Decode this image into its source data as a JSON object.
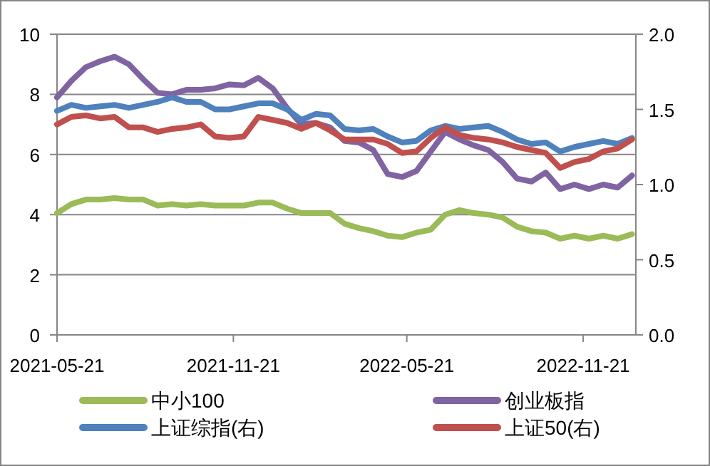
{
  "chart_data": {
    "type": "line",
    "x": [
      "2021-05-21",
      "2021-06-05",
      "2021-06-20",
      "2021-07-05",
      "2021-07-20",
      "2021-08-04",
      "2021-08-19",
      "2021-09-03",
      "2021-09-18",
      "2021-10-03",
      "2021-10-18",
      "2021-11-02",
      "2021-11-17",
      "2021-12-02",
      "2021-12-17",
      "2022-01-01",
      "2022-01-16",
      "2022-01-31",
      "2022-02-15",
      "2022-03-02",
      "2022-03-17",
      "2022-04-01",
      "2022-04-16",
      "2022-05-01",
      "2022-05-16",
      "2022-05-31",
      "2022-06-15",
      "2022-06-30",
      "2022-07-15",
      "2022-07-30",
      "2022-08-14",
      "2022-08-29",
      "2022-09-13",
      "2022-09-28",
      "2022-10-13",
      "2022-10-28",
      "2022-11-12",
      "2022-11-27",
      "2022-12-12",
      "2022-12-27",
      "2023-01-11"
    ],
    "series": [
      {
        "name": "中小100",
        "color": "#9bbb59",
        "values": [
          4.05,
          4.35,
          4.5,
          4.5,
          4.55,
          4.5,
          4.5,
          4.3,
          4.35,
          4.3,
          4.35,
          4.3,
          4.3,
          4.3,
          4.4,
          4.4,
          4.2,
          4.05,
          4.05,
          4.05,
          3.7,
          3.55,
          3.45,
          3.3,
          3.25,
          3.4,
          3.5,
          4.0,
          4.15,
          4.05,
          4.0,
          3.9,
          3.6,
          3.45,
          3.4,
          3.2,
          3.3,
          3.2,
          3.3,
          3.2,
          3.35
        ]
      },
      {
        "name": "创业板指",
        "color": "#8064a2",
        "values": [
          7.9,
          8.45,
          8.9,
          9.1,
          9.25,
          9.0,
          8.5,
          8.05,
          8.0,
          8.15,
          8.15,
          8.2,
          8.33,
          8.3,
          8.55,
          8.2,
          7.55,
          7.0,
          7.05,
          6.9,
          6.45,
          6.4,
          6.15,
          5.35,
          5.25,
          5.45,
          6.1,
          6.75,
          6.5,
          6.3,
          6.15,
          5.75,
          5.2,
          5.1,
          5.4,
          4.85,
          5.0,
          4.85,
          5.0,
          4.9,
          5.3
        ]
      },
      {
        "name": "上证综指(右)",
        "color": "#4f81bd",
        "axis": "y2",
        "values": [
          1.49,
          1.53,
          1.51,
          1.52,
          1.53,
          1.51,
          1.53,
          1.55,
          1.58,
          1.55,
          1.55,
          1.5,
          1.5,
          1.52,
          1.54,
          1.54,
          1.5,
          1.43,
          1.47,
          1.46,
          1.37,
          1.36,
          1.37,
          1.32,
          1.28,
          1.29,
          1.36,
          1.39,
          1.37,
          1.38,
          1.39,
          1.35,
          1.3,
          1.27,
          1.28,
          1.22,
          1.25,
          1.27,
          1.29,
          1.27,
          1.31
        ]
      },
      {
        "name": "上证50(右)",
        "color": "#c0504d",
        "axis": "y2",
        "values": [
          1.4,
          1.45,
          1.46,
          1.44,
          1.45,
          1.38,
          1.38,
          1.35,
          1.37,
          1.38,
          1.4,
          1.32,
          1.31,
          1.32,
          1.45,
          1.43,
          1.41,
          1.37,
          1.41,
          1.36,
          1.3,
          1.3,
          1.3,
          1.27,
          1.21,
          1.22,
          1.31,
          1.38,
          1.33,
          1.31,
          1.3,
          1.28,
          1.25,
          1.23,
          1.21,
          1.11,
          1.15,
          1.17,
          1.22,
          1.24,
          1.3
        ]
      }
    ],
    "xlim": [
      "2021-05-21",
      "2023-01-15"
    ],
    "xticks": [
      {
        "value": "2021-05-21",
        "label": "2021-05-21"
      },
      {
        "value": "2021-11-21",
        "label": "2021-11-21"
      },
      {
        "value": "2022-05-21",
        "label": "2022-05-21"
      },
      {
        "value": "2022-11-21",
        "label": "2022-11-21"
      }
    ],
    "ylim": [
      0,
      10
    ],
    "yticks": [
      0,
      2,
      4,
      6,
      8,
      10
    ],
    "y2lim": [
      0,
      2
    ],
    "y2ticks": [
      {
        "value": 0,
        "label": "0.0"
      },
      {
        "value": 0.5,
        "label": "0.5"
      },
      {
        "value": 1,
        "label": "1.0"
      },
      {
        "value": 1.5,
        "label": "1.5"
      },
      {
        "value": 2,
        "label": "2.0"
      }
    ],
    "grid": "y",
    "legend": "bottom",
    "marker": "none",
    "line_style": "solid"
  }
}
